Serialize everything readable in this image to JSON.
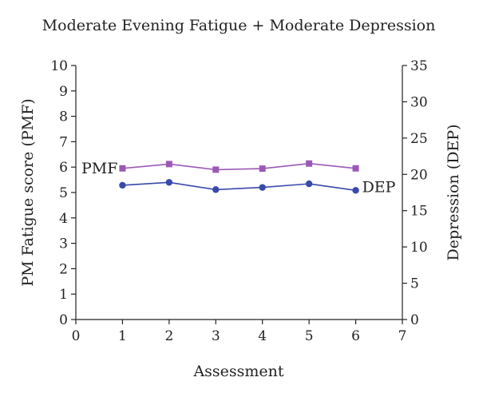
{
  "chart_data": {
    "type": "line",
    "title": "Moderate Evening Fatigue + Moderate Depression",
    "xlabel": "Assessment",
    "ylabel": "PM Fatigue score (PMF)",
    "y2label": "Depression (DEP)",
    "x_ticks": [
      0,
      1,
      2,
      3,
      4,
      5,
      6,
      7
    ],
    "y_ticks": [
      0,
      1,
      2,
      3,
      4,
      5,
      6,
      7,
      8,
      9,
      10
    ],
    "y2_ticks": [
      0,
      5,
      10,
      15,
      20,
      25,
      30,
      35
    ],
    "xlim": [
      0,
      7
    ],
    "ylim": [
      0,
      10
    ],
    "y2lim": [
      0,
      35
    ],
    "grid": false,
    "x": [
      1,
      2,
      3,
      4,
      5,
      6
    ],
    "series": [
      {
        "name": "PMF",
        "axis": "left",
        "marker": "square",
        "color": "#9b59b6",
        "values": [
          5.95,
          6.12,
          5.9,
          5.94,
          6.14,
          5.95
        ]
      },
      {
        "name": "DEP",
        "axis": "right",
        "marker": "circle",
        "color": "#3949ab",
        "values": [
          18.5,
          18.9,
          17.9,
          18.2,
          18.7,
          17.8
        ]
      }
    ]
  }
}
